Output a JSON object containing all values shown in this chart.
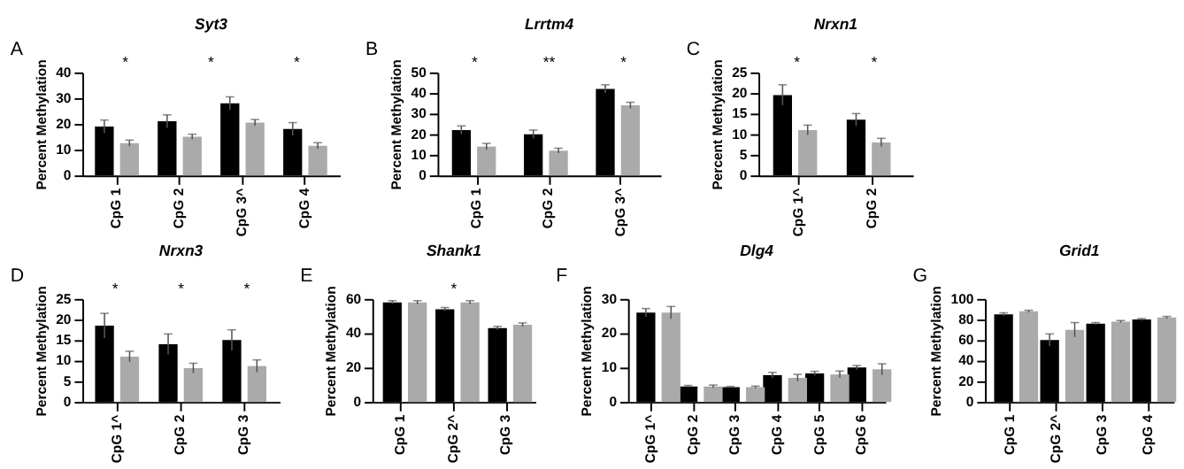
{
  "chart_data": [
    {
      "type": "bar",
      "title": "Syt3",
      "ylabel": "Percent Methylation",
      "categories": [
        "CpG 1",
        "CpG 2",
        "CpG 3^",
        "CpG 4"
      ],
      "ylim": [
        0,
        40
      ],
      "yticks": [
        0,
        10,
        20,
        30,
        40
      ],
      "grid": false,
      "legend": false,
      "series": [
        {
          "color": "#000000",
          "values": [
            19,
            21,
            28,
            18
          ],
          "errors": [
            2.5,
            2.5,
            2.5,
            2.5
          ]
        },
        {
          "color": "#aaaaaa",
          "values": [
            12.5,
            15,
            20.5,
            11.5
          ],
          "errors": [
            1.2,
            1,
            1.2,
            1.2
          ]
        }
      ],
      "annotations": [
        "A",
        "*",
        "*",
        "*"
      ]
    },
    {
      "type": "bar",
      "title": "Lrrtm4",
      "ylabel": "Percent Methylation",
      "categories": [
        "CpG 1",
        "CpG 2",
        "CpG 3^"
      ],
      "ylim": [
        0,
        50
      ],
      "yticks": [
        0,
        10,
        20,
        30,
        40,
        50
      ],
      "grid": false,
      "legend": false,
      "series": [
        {
          "color": "#000000",
          "values": [
            22,
            20,
            42
          ],
          "errors": [
            2,
            2,
            2
          ]
        },
        {
          "color": "#aaaaaa",
          "values": [
            14,
            12,
            34
          ],
          "errors": [
            1.5,
            1.2,
            1.5
          ]
        }
      ],
      "annotations": [
        "B",
        "*",
        "**",
        "*"
      ]
    },
    {
      "type": "bar",
      "title": "Nrxn1",
      "ylabel": "Percent Methylation",
      "categories": [
        "CpG 1^",
        "CpG 2"
      ],
      "ylim": [
        0,
        25
      ],
      "yticks": [
        0,
        5,
        10,
        15,
        20,
        25
      ],
      "grid": false,
      "legend": false,
      "series": [
        {
          "color": "#000000",
          "values": [
            19.5,
            13.5
          ],
          "errors": [
            2.5,
            1.5
          ]
        },
        {
          "color": "#aaaaaa",
          "values": [
            11,
            8
          ],
          "errors": [
            1.2,
            1
          ]
        }
      ],
      "annotations": [
        "C",
        "*",
        "*"
      ]
    },
    {
      "type": "bar",
      "title": "Nrxn3",
      "ylabel": "Percent Methylation",
      "categories": [
        "CpG 1^",
        "CpG 2",
        "CpG 3"
      ],
      "ylim": [
        0,
        25
      ],
      "yticks": [
        0,
        5,
        10,
        15,
        20,
        25
      ],
      "grid": false,
      "legend": false,
      "series": [
        {
          "color": "#000000",
          "values": [
            18.5,
            14,
            15
          ],
          "errors": [
            3,
            2.5,
            2.5
          ]
        },
        {
          "color": "#aaaaaa",
          "values": [
            11,
            8.2,
            8.7
          ],
          "errors": [
            1.3,
            1.2,
            1.5
          ]
        }
      ],
      "annotations": [
        "D",
        "*",
        "*",
        "*"
      ]
    },
    {
      "type": "bar",
      "title": "Shank1",
      "ylabel": "Percent Methylation",
      "categories": [
        "CpG 1",
        "CpG 2^",
        "CpG 3"
      ],
      "ylim": [
        0,
        60
      ],
      "yticks": [
        0,
        20,
        40,
        60
      ],
      "grid": false,
      "legend": false,
      "series": [
        {
          "color": "#000000",
          "values": [
            58,
            54,
            43
          ],
          "errors": [
            1,
            1,
            1
          ]
        },
        {
          "color": "#aaaaaa",
          "values": [
            58,
            58,
            45
          ],
          "errors": [
            1,
            1,
            1
          ]
        }
      ],
      "annotations": [
        "E",
        "*"
      ]
    },
    {
      "type": "bar",
      "title": "Dlg4",
      "ylabel": "Percent Methylation",
      "categories": [
        "CpG 1^",
        "CpG 2",
        "CpG 3",
        "CpG 4",
        "CpG 5",
        "CpG 6"
      ],
      "ylim": [
        0,
        30
      ],
      "yticks": [
        0,
        10,
        20,
        30
      ],
      "grid": false,
      "legend": false,
      "series": [
        {
          "color": "#000000",
          "values": [
            26,
            4.5,
            4.3,
            7.8,
            8.3,
            10
          ],
          "errors": [
            1.2,
            0.3,
            0.2,
            0.8,
            0.6,
            0.6
          ]
        },
        {
          "color": "#aaaaaa",
          "values": [
            26,
            4.5,
            4.3,
            7,
            8,
            9.5
          ],
          "errors": [
            1.8,
            0.4,
            0.3,
            1,
            1,
            1.6
          ]
        }
      ],
      "annotations": [
        "F"
      ]
    },
    {
      "type": "bar",
      "title": "Grid1",
      "ylabel": "Percent Methylation",
      "categories": [
        "CpG 1",
        "CpG 2^",
        "CpG 3",
        "CpG 4"
      ],
      "ylim": [
        0,
        100
      ],
      "yticks": [
        0,
        20,
        40,
        60,
        80,
        100
      ],
      "grid": false,
      "legend": false,
      "series": [
        {
          "color": "#000000",
          "values": [
            85,
            60,
            76,
            80
          ],
          "errors": [
            1.5,
            6,
            1,
            1
          ]
        },
        {
          "color": "#aaaaaa",
          "values": [
            88,
            70,
            78,
            82
          ],
          "errors": [
            1,
            7,
            1,
            1
          ]
        }
      ],
      "annotations": [
        "G"
      ]
    }
  ]
}
